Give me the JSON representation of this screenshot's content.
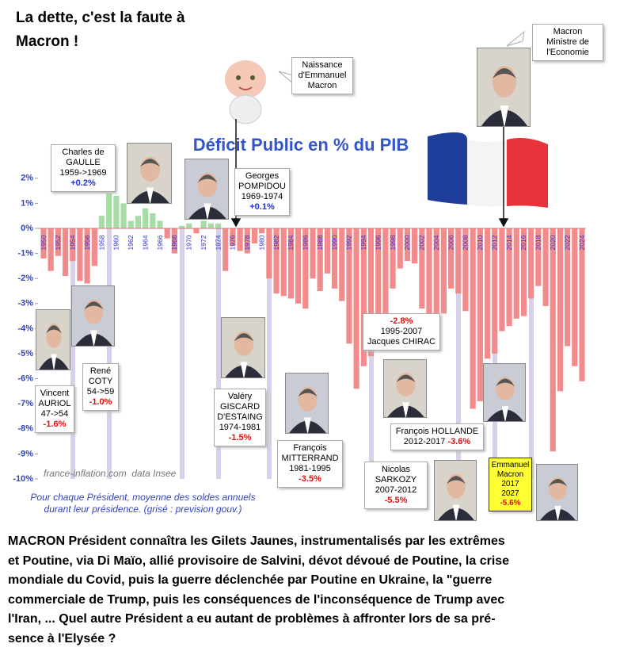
{
  "title": "La dette, c'est la faute à Macron !",
  "chart_data": {
    "type": "bar",
    "title": "Déficit Public en % du PIB",
    "categories": [
      "1950",
      null,
      "1952",
      null,
      "1954",
      null,
      "1956",
      null,
      "1958",
      null,
      "1960",
      null,
      "1962",
      null,
      "1964",
      null,
      "1966",
      null,
      "1968",
      null,
      "1970",
      null,
      "1972",
      null,
      "1974",
      null,
      "1976",
      null,
      "1978",
      null,
      "1980",
      null,
      "1982",
      null,
      "1984",
      null,
      "1986",
      null,
      "1988",
      null,
      "1990",
      null,
      "1992",
      null,
      "1994",
      null,
      "1996",
      null,
      "1998",
      null,
      "2000",
      null,
      "2002",
      null,
      "2004",
      null,
      "2006",
      null,
      "2008",
      null,
      "2010",
      null,
      "2012",
      null,
      "2014",
      null,
      "2016",
      null,
      "2018",
      null,
      "2020",
      null,
      "2022",
      null,
      "2024"
    ],
    "values": [
      -1.2,
      -1.7,
      -1.1,
      -1.9,
      -1.3,
      -2.1,
      -2.2,
      -1.5,
      0.5,
      1.4,
      1.3,
      1.0,
      0.3,
      0.5,
      0.8,
      0.6,
      0.3,
      -0.4,
      -1.0,
      0.1,
      0.2,
      -0.2,
      0.3,
      0.2,
      0.2,
      -1.7,
      -0.7,
      -0.9,
      -1.0,
      -0.6,
      -0.2,
      -2.0,
      -2.6,
      -2.7,
      -2.8,
      -3.0,
      -3.2,
      -2.0,
      -2.5,
      -1.8,
      -2.4,
      -2.9,
      -4.6,
      -6.4,
      -5.5,
      -5.1,
      -3.9,
      -3.6,
      -2.4,
      -1.6,
      -1.3,
      -1.4,
      -3.2,
      -4.0,
      -3.6,
      -3.4,
      -2.4,
      -2.6,
      -3.3,
      -7.2,
      -6.9,
      -5.2,
      -5.0,
      -4.1,
      -3.9,
      -3.6,
      -3.5,
      -2.8,
      -2.3,
      -3.1,
      -8.9,
      -6.5,
      -4.7,
      -5.5,
      -6.1
    ],
    "color": "#f28b8b",
    "positive_color": "#a6dca6",
    "ylim": [
      -10,
      2.3
    ],
    "yticks": [
      {
        "value": 2,
        "label": "2%"
      },
      {
        "value": 1,
        "label": "1%"
      },
      {
        "value": 0,
        "label": "0%"
      },
      {
        "value": -1,
        "label": "-1%"
      },
      {
        "value": -2,
        "label": "-2%"
      },
      {
        "value": -3,
        "label": "-3%"
      },
      {
        "value": -4,
        "label": "-4%"
      },
      {
        "value": -5,
        "label": "-5%"
      },
      {
        "value": -6,
        "label": "-6%"
      },
      {
        "value": -7,
        "label": "-7%"
      },
      {
        "value": -8,
        "label": "-8%"
      },
      {
        "value": -9,
        "label": "-9%"
      },
      {
        "value": -10,
        "label": "-10%"
      }
    ],
    "grid": false,
    "source": "france-inflation.com  data Insee",
    "note": [
      "Pour chaque Président, moyenne des soldes annuels",
      "durant leur présidence. (grisé : prevision gouv.)"
    ],
    "annotations": [
      {
        "lines": [
          [
            "Charles de"
          ],
          [
            "GAULLE"
          ],
          [
            "1959->1969"
          ],
          [
            "+0.2%"
          ]
        ]
      },
      {
        "lines": [
          [
            "Georges"
          ],
          [
            "POMPIDOU"
          ],
          [
            "1969-1974"
          ],
          [
            "+0.1%"
          ]
        ]
      },
      {
        "lines": [
          [
            "Vincent"
          ],
          [
            "AURIOL"
          ],
          [
            "47->54"
          ],
          [
            "-1.6%"
          ]
        ]
      },
      {
        "lines": [
          [
            "René"
          ],
          [
            "COTY"
          ],
          [
            "54->59"
          ],
          [
            "-1.0%"
          ]
        ]
      },
      {
        "lines": [
          [
            "Valéry"
          ],
          [
            "GISCARD"
          ],
          [
            "D'ESTAING"
          ],
          [
            "1974-1981"
          ],
          [
            "-1.5%"
          ]
        ]
      },
      {
        "lines": [
          [
            "François"
          ],
          [
            "MITTERRAND"
          ],
          [
            "1981-1995"
          ],
          [
            "-3.5%"
          ]
        ]
      },
      {
        "lines": [
          [
            "-2.8%"
          ],
          [
            "1995-2007"
          ],
          [
            "Jacques CHIRAC"
          ]
        ]
      },
      {
        "lines": [
          [
            "François HOLLANDE"
          ],
          [
            "2012-2017 ",
            "-3.6%"
          ]
        ]
      },
      {
        "lines": [
          [
            "Nicolas"
          ],
          [
            "SARKOZY"
          ],
          [
            "2007-2012"
          ],
          [
            "-5.5%"
          ]
        ]
      },
      {
        "lines": [
          [
            "Emmanuel"
          ],
          [
            "Macron"
          ],
          [
            "2017"
          ],
          [
            "2027"
          ],
          [
            "-5.6%"
          ]
        ]
      },
      {
        "lines": [
          [
            "Naissance"
          ],
          [
            "d'Emmanuel"
          ],
          [
            "Macron"
          ]
        ]
      },
      {
        "lines": [
          [
            "Macron"
          ],
          [
            "Ministre de"
          ],
          [
            "l'Economie"
          ]
        ]
      }
    ]
  },
  "text": [
    "MACRON Président connaîtra les Gilets Jaunes, instrumentalisés par les extrêmes",
    "et Poutine, via Di Maïo, allié provisoire de Salvini, dévot dévoué de Poutine, la crise",
    "mondiale du Covid, puis la guerre déclenchée par Poutine en Ukraine, la \"guerre",
    "commerciale de Trump, puis les conséquences de l'inconséquence de Trump avec",
    "l'Iran, ... Quel autre Président a eu autant de problèmes à affronter lors de sa pré-",
    "sence à l'Elysée ?"
  ]
}
